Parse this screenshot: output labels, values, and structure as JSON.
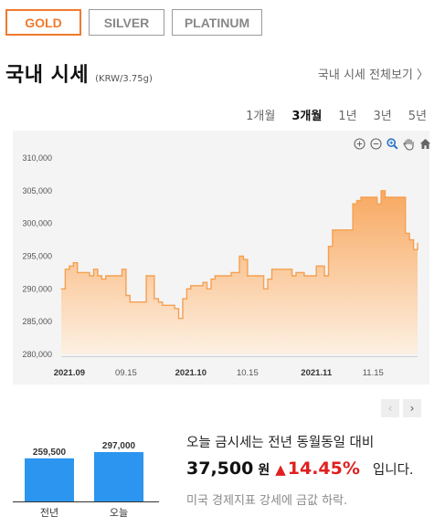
{
  "tabs": [
    {
      "label": "GOLD",
      "active": true
    },
    {
      "label": "SILVER",
      "active": false
    },
    {
      "label": "PLATINUM",
      "active": false
    }
  ],
  "header": {
    "title": "국내 시세",
    "unit": "(KRW/3.75g)",
    "more_link": "국내 시세 전체보기 〉"
  },
  "periods": [
    {
      "label": "1개월",
      "active": false
    },
    {
      "label": "3개월",
      "active": true
    },
    {
      "label": "1년",
      "active": false
    },
    {
      "label": "3년",
      "active": false
    },
    {
      "label": "5년",
      "active": false
    }
  ],
  "toolbar": [
    "zoom-in-icon",
    "zoom-out-icon",
    "magnify-icon",
    "pan-hand-icon",
    "home-icon"
  ],
  "colors": {
    "accent": "#f07a2d",
    "line": "#f5a050",
    "fill_top": "#f8a860",
    "fill_bottom": "#fdf0e2",
    "bar": "#2b95ef",
    "up": "#e02020"
  },
  "chart_data": [
    {
      "type": "area",
      "title": "",
      "xlabel": "",
      "ylabel": "",
      "ylim": [
        280000,
        310000
      ],
      "yticks": [
        "280,000",
        "285,000",
        "290,000",
        "295,000",
        "300,000",
        "305,000",
        "310,000"
      ],
      "xticks": [
        "2021.09",
        "09.15",
        "2021.10",
        "10.15",
        "2021.11",
        "11.15"
      ],
      "x": [
        "2021-08-30",
        "2021-08-31",
        "2021-09-01",
        "2021-09-02",
        "2021-09-03",
        "2021-09-06",
        "2021-09-07",
        "2021-09-08",
        "2021-09-09",
        "2021-09-10",
        "2021-09-13",
        "2021-09-14",
        "2021-09-15",
        "2021-09-16",
        "2021-09-17",
        "2021-09-20",
        "2021-09-21",
        "2021-09-22",
        "2021-09-23",
        "2021-09-24",
        "2021-09-27",
        "2021-09-28",
        "2021-09-29",
        "2021-09-30",
        "2021-10-01",
        "2021-10-04",
        "2021-10-05",
        "2021-10-06",
        "2021-10-07",
        "2021-10-08",
        "2021-10-11",
        "2021-10-12",
        "2021-10-13",
        "2021-10-14",
        "2021-10-15",
        "2021-10-18",
        "2021-10-19",
        "2021-10-20",
        "2021-10-21",
        "2021-10-22",
        "2021-10-25",
        "2021-10-26",
        "2021-10-27",
        "2021-10-28",
        "2021-10-29",
        "2021-11-01",
        "2021-11-02",
        "2021-11-03",
        "2021-11-04",
        "2021-11-05",
        "2021-11-08",
        "2021-11-09",
        "2021-11-10",
        "2021-11-11",
        "2021-11-12",
        "2021-11-15",
        "2021-11-16",
        "2021-11-17",
        "2021-11-18",
        "2021-11-19",
        "2021-11-22",
        "2021-11-23",
        "2021-11-24",
        "2021-11-25",
        "2021-11-26"
      ],
      "values": [
        290000,
        293000,
        293500,
        294000,
        292500,
        292000,
        293000,
        292000,
        291500,
        292000,
        292000,
        293000,
        289000,
        288000,
        288000,
        292000,
        292000,
        288500,
        288000,
        287500,
        287000,
        285500,
        288500,
        290000,
        290500,
        291000,
        290000,
        291500,
        292000,
        292000,
        292500,
        292500,
        295000,
        294500,
        292000,
        292000,
        290000,
        291500,
        293000,
        293000,
        293000,
        292000,
        292500,
        292500,
        292000,
        293500,
        293500,
        292000,
        296500,
        299000,
        299000,
        299000,
        303000,
        303500,
        304000,
        304000,
        303000,
        305000,
        304000,
        304000,
        304000,
        298500,
        297500,
        296000,
        297000
      ]
    },
    {
      "type": "bar",
      "categories": [
        "전년",
        "오늘"
      ],
      "values": [
        259500,
        297000
      ],
      "value_labels": [
        "259,500",
        "297,000"
      ]
    }
  ],
  "summary": {
    "line1": "오늘 금시세는 전년 동월동일 대비",
    "price": "37,500",
    "won": "원",
    "change_arrow": "▲",
    "change_pct": "14.45%",
    "suffix": "입니다.",
    "note": "미국 경제지표 강세에 금값 하락."
  },
  "pager": {
    "prev": "‹",
    "next": "›"
  }
}
